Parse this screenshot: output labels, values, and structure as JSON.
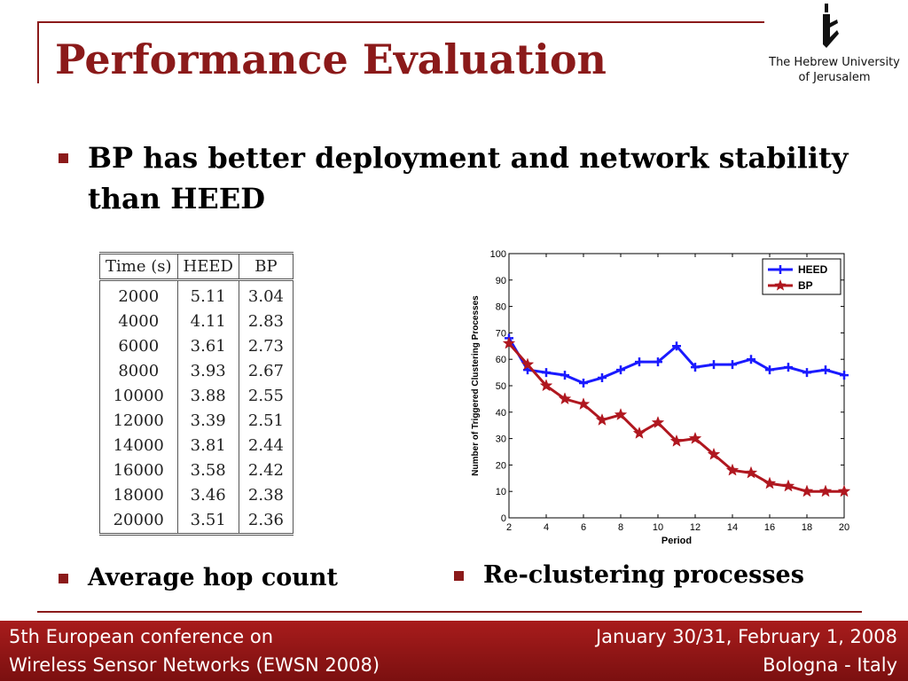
{
  "slide": {
    "title": "Performance Evaluation",
    "main_bullet": "BP has better deployment and network stability than HEED",
    "bullet_table": "Average hop count",
    "bullet_chart": "Re-clustering processes"
  },
  "logo": {
    "line1": "The Hebrew University",
    "line2": "of Jerusalem"
  },
  "footer": {
    "left_line1": "5th European conference on",
    "left_line2": "Wireless Sensor Networks (EWSN 2008)",
    "right_line1": "January 30/31, February 1, 2008",
    "right_line2": "Bologna - Italy"
  },
  "table": {
    "headers": [
      "Time (s)",
      "HEED",
      "BP"
    ],
    "rows": [
      [
        "2000",
        "5.11",
        "3.04"
      ],
      [
        "4000",
        "4.11",
        "2.83"
      ],
      [
        "6000",
        "3.61",
        "2.73"
      ],
      [
        "8000",
        "3.93",
        "2.67"
      ],
      [
        "10000",
        "3.88",
        "2.55"
      ],
      [
        "12000",
        "3.39",
        "2.51"
      ],
      [
        "14000",
        "3.81",
        "2.44"
      ],
      [
        "16000",
        "3.58",
        "2.42"
      ],
      [
        "18000",
        "3.46",
        "2.38"
      ],
      [
        "20000",
        "3.51",
        "2.36"
      ]
    ]
  },
  "colors": {
    "accent": "#8b1a1a",
    "heed": "#1a1aff",
    "bp": "#b0171f"
  },
  "chart_data": {
    "type": "line",
    "xlabel": "Period",
    "ylabel": "Number of Triggered Clustering Processes",
    "xlim": [
      2,
      20
    ],
    "ylim": [
      0,
      100
    ],
    "xticks": [
      2,
      4,
      6,
      8,
      10,
      12,
      14,
      16,
      18,
      20
    ],
    "yticks": [
      0,
      10,
      20,
      30,
      40,
      50,
      60,
      70,
      80,
      90,
      100
    ],
    "grid": false,
    "legend_position": "top-right",
    "x": [
      2,
      3,
      4,
      5,
      6,
      7,
      8,
      9,
      10,
      11,
      12,
      13,
      14,
      15,
      16,
      17,
      18,
      19,
      20
    ],
    "series": [
      {
        "name": "HEED",
        "marker": "plus",
        "values": [
          68,
          56,
          55,
          54,
          51,
          53,
          56,
          59,
          59,
          65,
          57,
          58,
          58,
          60,
          56,
          57,
          55,
          56,
          54
        ]
      },
      {
        "name": "BP",
        "marker": "star",
        "values": [
          66,
          58,
          50,
          45,
          43,
          37,
          39,
          32,
          36,
          29,
          30,
          24,
          18,
          17,
          13,
          12,
          10,
          10,
          10
        ]
      }
    ]
  }
}
